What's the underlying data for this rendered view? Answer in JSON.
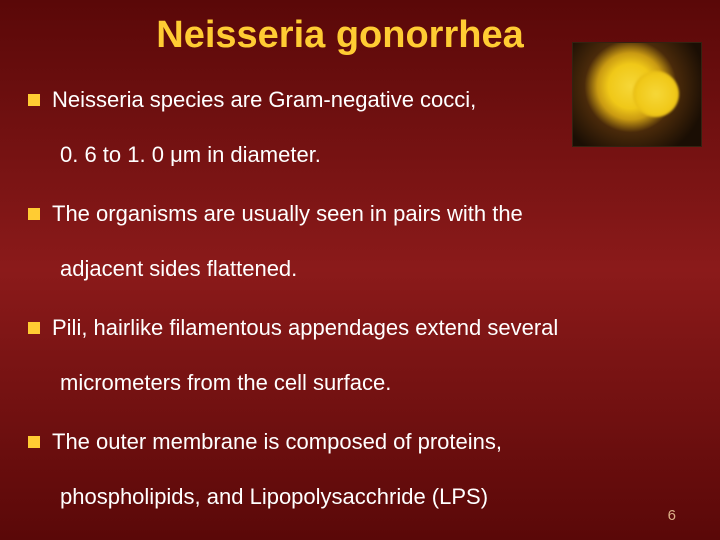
{
  "title": "Neisseria gonorrhea",
  "bullets": [
    {
      "line1": "Neisseria species are Gram-negative cocci,",
      "line2": "0. 6 to 1. 0 μm in diameter."
    },
    {
      "line1": "The organisms are usually seen in pairs with the",
      "line2": "adjacent sides flattened."
    },
    {
      "line1": "Pili, hairlike filamentous appendages extend several",
      "line2": "micrometers from the cell surface."
    },
    {
      "line1": "The outer membrane is composed of proteins,",
      "line2": "phospholipids, and Lipopolysacchride (LPS)"
    }
  ],
  "pageNumber": "6",
  "colors": {
    "title": "#ffcc33",
    "bullet": "#ffcc33",
    "text": "#ffffff",
    "pageNum": "#ddb088"
  }
}
